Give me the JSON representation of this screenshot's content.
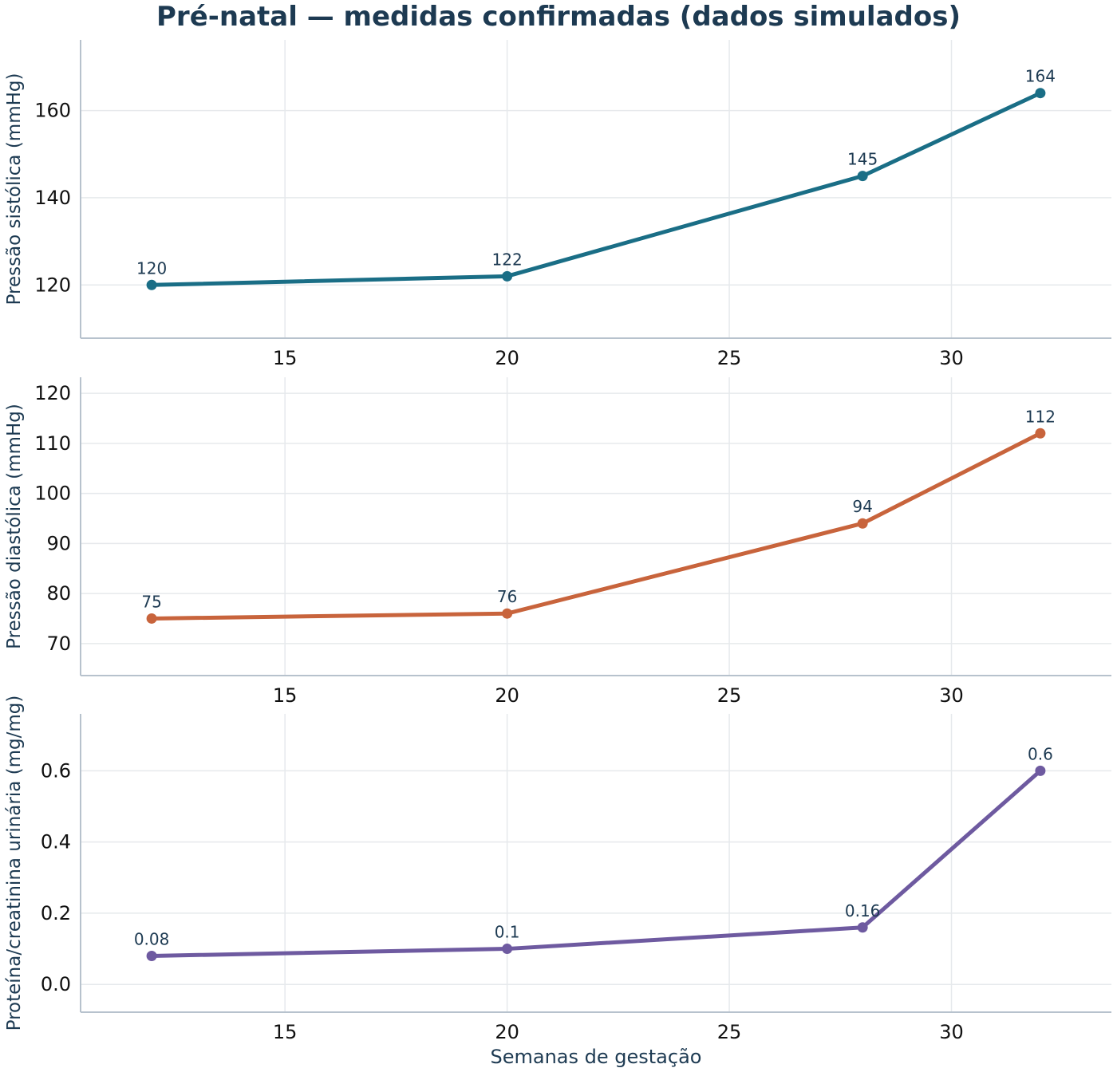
{
  "title": "Pré-natal — medidas confirmadas (dados simulados)",
  "xlabel": "Semanas de gestação",
  "chart_data": [
    {
      "type": "line",
      "x": [
        12,
        20,
        28,
        32
      ],
      "values": [
        120,
        122,
        145,
        164
      ],
      "data_labels": [
        "120",
        "122",
        "145",
        "164"
      ],
      "ylabel": "Pressão sistólica (mmHg)",
      "xlabel": "",
      "xlim": [
        10.4,
        33.6
      ],
      "ylim": [
        107.8,
        176.2
      ],
      "xticks": [
        15,
        20,
        25,
        30
      ],
      "yticks": [
        120,
        140,
        160
      ],
      "ytick_labels": [
        "120",
        "140",
        "160"
      ],
      "color": "#1a6e86",
      "grid": true
    },
    {
      "type": "line",
      "x": [
        12,
        20,
        28,
        32
      ],
      "values": [
        75,
        76,
        94,
        112
      ],
      "data_labels": [
        "75",
        "76",
        "94",
        "112"
      ],
      "ylabel": "Pressão diastólica (mmHg)",
      "xlabel": "",
      "xlim": [
        10.4,
        33.6
      ],
      "ylim": [
        63.6,
        123.2
      ],
      "xticks": [
        15,
        20,
        25,
        30
      ],
      "yticks": [
        70,
        80,
        90,
        100,
        110,
        120
      ],
      "ytick_labels": [
        "70",
        "80",
        "90",
        "100",
        "110",
        "120"
      ],
      "color": "#c8643c",
      "grid": true
    },
    {
      "type": "line",
      "x": [
        12,
        20,
        28,
        32
      ],
      "values": [
        0.08,
        0.1,
        0.16,
        0.6
      ],
      "data_labels": [
        "0.08",
        "0.1",
        "0.16",
        "0.6"
      ],
      "ylabel": "Proteína/creatinina urinária (mg/mg)",
      "xlabel": "Semanas de gestação",
      "xlim": [
        10.4,
        33.6
      ],
      "ylim": [
        -0.078,
        0.76
      ],
      "xticks": [
        15,
        20,
        25,
        30
      ],
      "yticks": [
        0.0,
        0.2,
        0.4,
        0.6
      ],
      "ytick_labels": [
        "0.0",
        "0.2",
        "0.4",
        "0.6"
      ],
      "color": "#6e5aa0",
      "grid": true
    }
  ]
}
